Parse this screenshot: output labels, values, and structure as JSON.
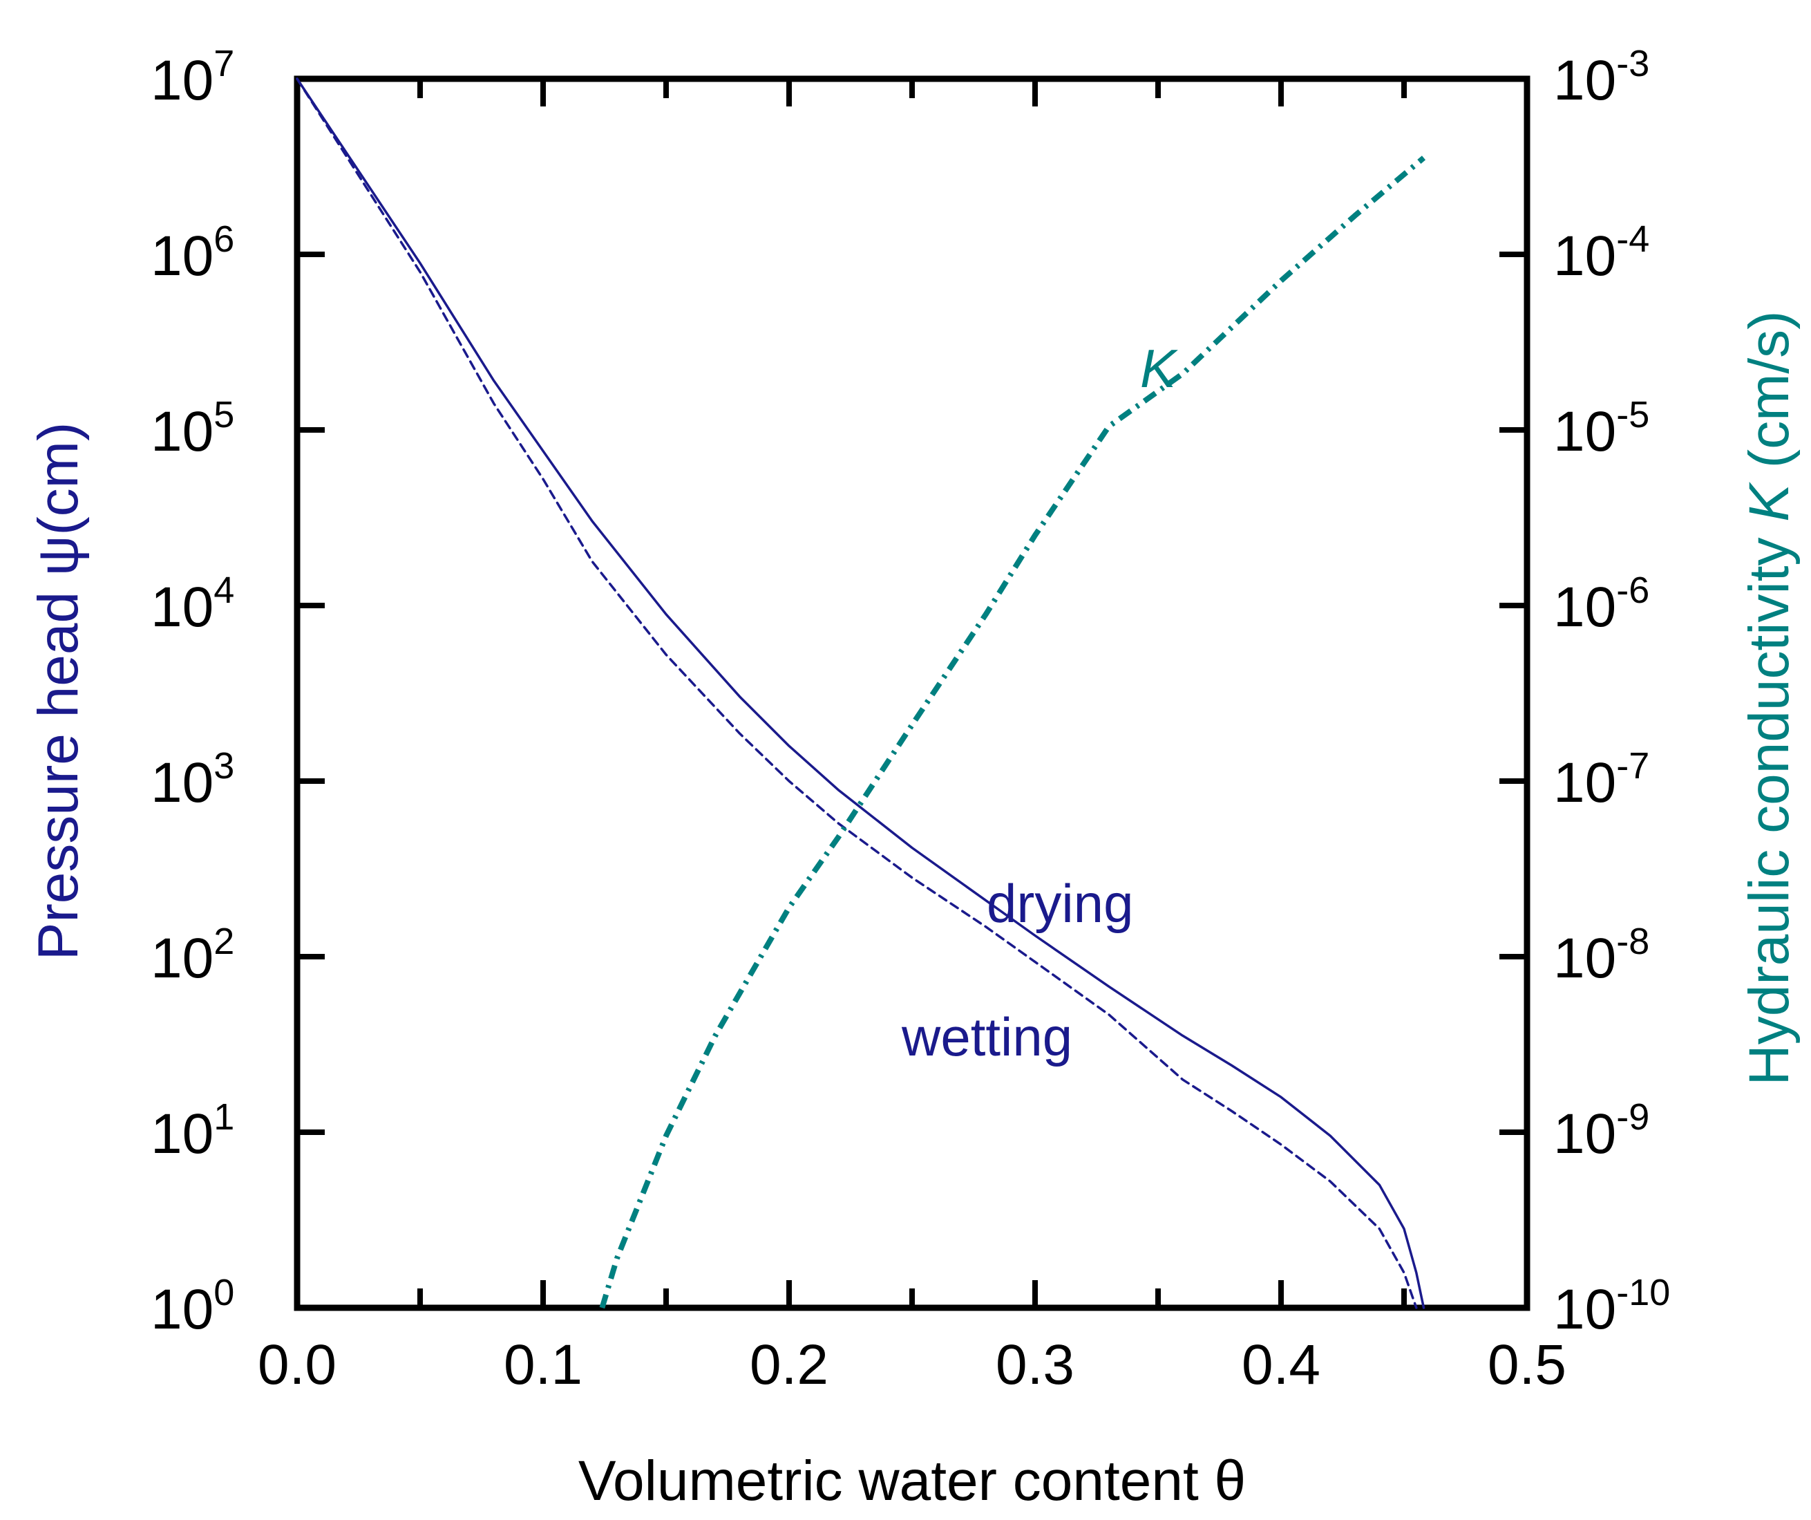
{
  "chart_data": {
    "type": "line",
    "xlabel": "Volumetric water content θ",
    "ylabel_left": "Pressure head ψ(cm)",
    "ylabel_right_prefix": "Hydraulic conductivity ",
    "ylabel_right_var": "K",
    "ylabel_right_suffix": " (cm/s)",
    "xlim": [
      0.0,
      0.5
    ],
    "ylim_left_log10": [
      0,
      7
    ],
    "ylim_right_log10": [
      -10,
      -3
    ],
    "x_ticks": [
      "0.0",
      "0.1",
      "0.2",
      "0.3",
      "0.4",
      "0.5"
    ],
    "y_left_ticks": [
      {
        "base": "10",
        "exp": "0"
      },
      {
        "base": "10",
        "exp": "1"
      },
      {
        "base": "10",
        "exp": "2"
      },
      {
        "base": "10",
        "exp": "3"
      },
      {
        "base": "10",
        "exp": "4"
      },
      {
        "base": "10",
        "exp": "5"
      },
      {
        "base": "10",
        "exp": "6"
      },
      {
        "base": "10",
        "exp": "7"
      }
    ],
    "y_right_ticks": [
      {
        "base": "10",
        "exp": "-10"
      },
      {
        "base": "10",
        "exp": "-9"
      },
      {
        "base": "10",
        "exp": "-8"
      },
      {
        "base": "10",
        "exp": "-7"
      },
      {
        "base": "10",
        "exp": "-6"
      },
      {
        "base": "10",
        "exp": "-5"
      },
      {
        "base": "10",
        "exp": "-4"
      },
      {
        "base": "10",
        "exp": "-3"
      }
    ],
    "series": [
      {
        "name": "drying",
        "axis": "left",
        "style": "solid",
        "color": "#1a1a8c",
        "x": [
          0.0,
          0.02,
          0.05,
          0.08,
          0.1,
          0.12,
          0.15,
          0.18,
          0.2,
          0.22,
          0.25,
          0.28,
          0.3,
          0.33,
          0.36,
          0.38,
          0.4,
          0.42,
          0.44,
          0.45,
          0.455,
          0.458
        ],
        "log10_y": [
          7.0,
          6.58,
          5.95,
          5.28,
          4.88,
          4.48,
          3.95,
          3.48,
          3.2,
          2.95,
          2.62,
          2.32,
          2.12,
          1.83,
          1.55,
          1.38,
          1.2,
          0.98,
          0.7,
          0.45,
          0.2,
          0.0
        ]
      },
      {
        "name": "wetting",
        "axis": "left",
        "style": "dashed",
        "color": "#1a1a8c",
        "x": [
          0.0,
          0.02,
          0.05,
          0.08,
          0.1,
          0.12,
          0.15,
          0.18,
          0.2,
          0.22,
          0.25,
          0.28,
          0.3,
          0.33,
          0.36,
          0.38,
          0.4,
          0.42,
          0.44,
          0.45,
          0.455
        ],
        "log10_y": [
          7.0,
          6.56,
          5.9,
          5.15,
          4.72,
          4.25,
          3.72,
          3.27,
          3.0,
          2.76,
          2.45,
          2.17,
          1.97,
          1.67,
          1.3,
          1.12,
          0.93,
          0.72,
          0.45,
          0.2,
          0.0
        ]
      },
      {
        "name": "K",
        "axis": "right",
        "style": "dashdot",
        "color": "#008080",
        "x": [
          0.124,
          0.13,
          0.15,
          0.17,
          0.2,
          0.22,
          0.25,
          0.28,
          0.3,
          0.33,
          0.36,
          0.4,
          0.43,
          0.458
        ],
        "log10_y": [
          -10.0,
          -9.72,
          -9.02,
          -8.45,
          -7.72,
          -7.32,
          -6.68,
          -6.05,
          -5.6,
          -4.98,
          -4.68,
          -4.15,
          -3.78,
          -3.45
        ]
      }
    ],
    "annotations": {
      "drying": "drying",
      "wetting": "wetting",
      "K": "K"
    },
    "colors": {
      "left_axis_title": "#1a1a8c",
      "right_axis_title": "#008080",
      "frame": "#000000"
    }
  }
}
